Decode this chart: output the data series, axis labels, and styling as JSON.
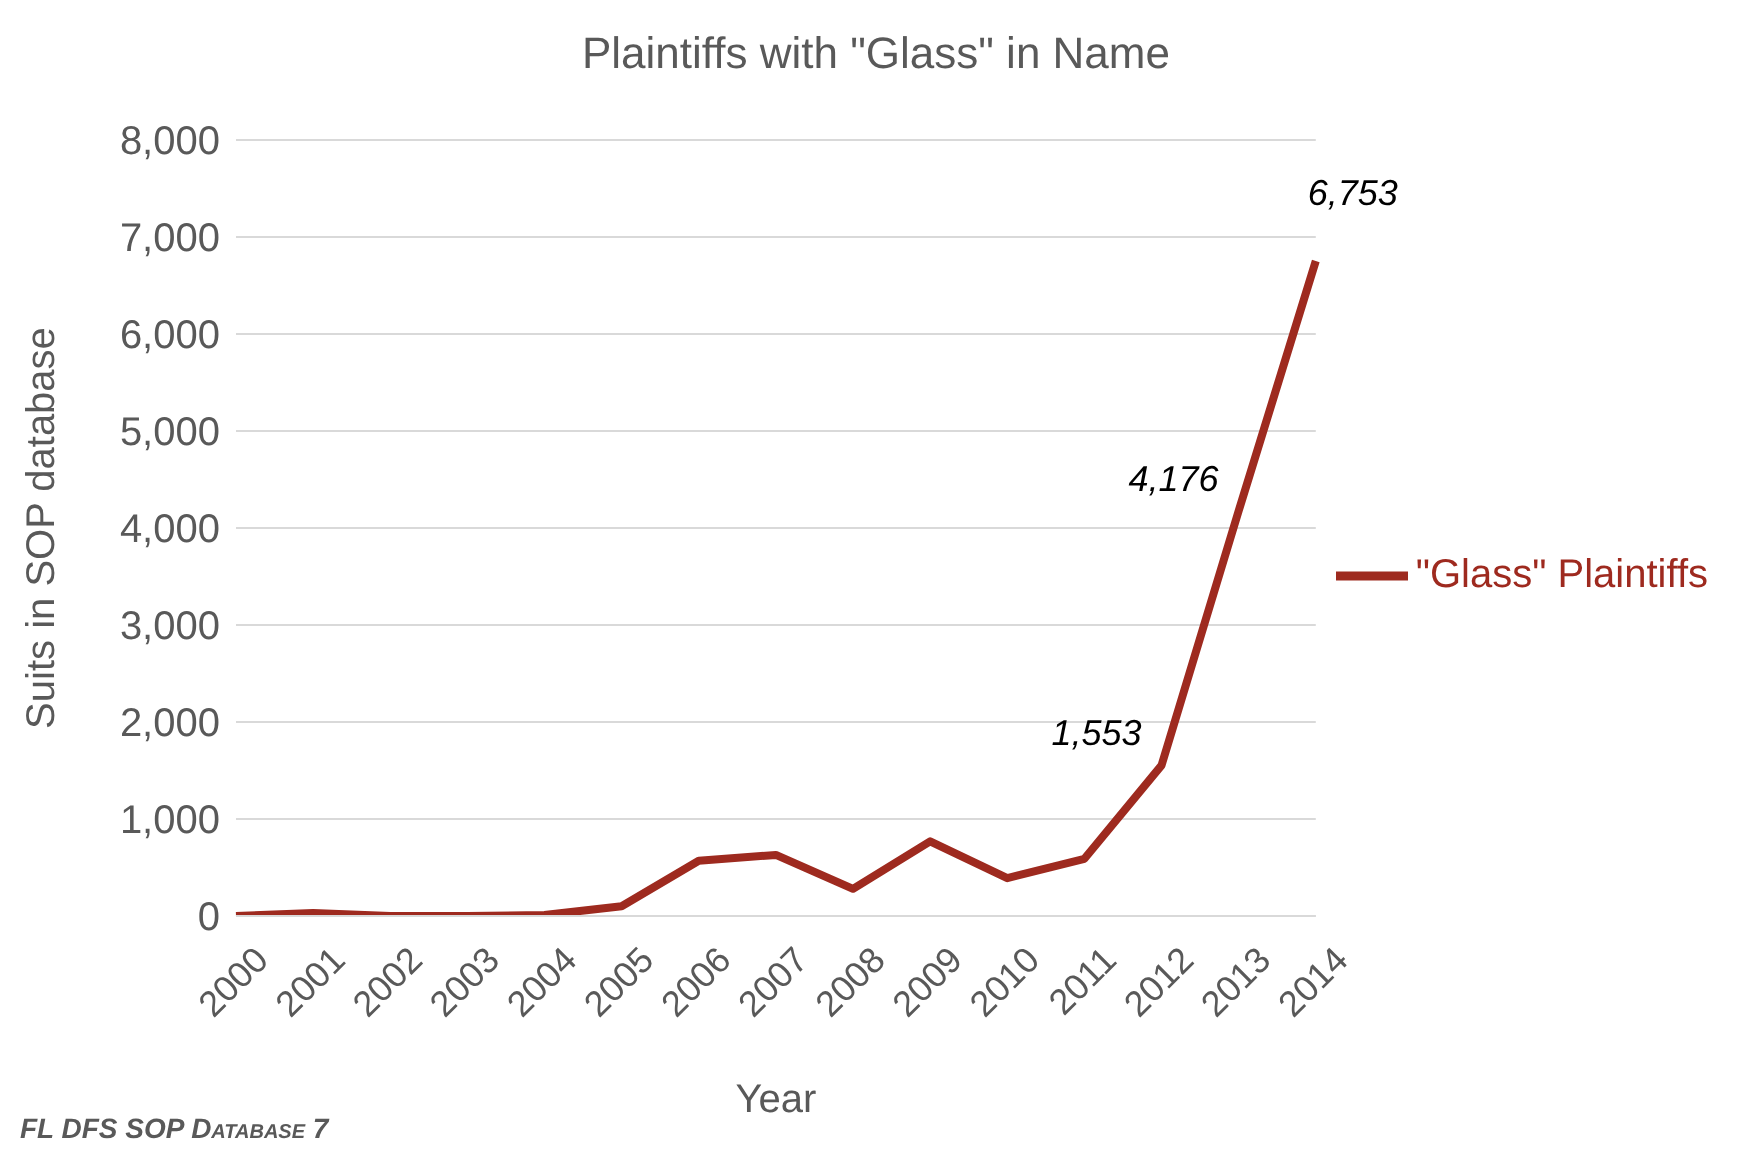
{
  "chart_data": {
    "type": "line",
    "title": "Plaintiffs with \"Glass\" in Name",
    "xlabel": "Year",
    "ylabel": "Suits in SOP database",
    "categories": [
      "2000",
      "2001",
      "2002",
      "2003",
      "2004",
      "2005",
      "2006",
      "2007",
      "2008",
      "2009",
      "2010",
      "2011",
      "2012",
      "2013",
      "2014"
    ],
    "series": [
      {
        "name": "\"Glass\" Plaintiffs",
        "color": "#9e2a1f",
        "values": [
          0,
          30,
          0,
          0,
          10,
          100,
          570,
          630,
          280,
          770,
          390,
          590,
          1553,
          4176,
          6753
        ],
        "value_labels": [
          null,
          null,
          null,
          null,
          null,
          null,
          null,
          null,
          null,
          null,
          null,
          null,
          "1,553",
          "4,176",
          "6,753"
        ]
      }
    ],
    "ylim": [
      0,
      8000
    ],
    "yticks": [
      {
        "value": 0,
        "label": "0"
      },
      {
        "value": 1000,
        "label": "1,000"
      },
      {
        "value": 2000,
        "label": "2,000"
      },
      {
        "value": 3000,
        "label": "3,000"
      },
      {
        "value": 4000,
        "label": "4,000"
      },
      {
        "value": 5000,
        "label": "5,000"
      },
      {
        "value": 6000,
        "label": "6,000"
      },
      {
        "value": 7000,
        "label": "7,000"
      },
      {
        "value": 8000,
        "label": "8,000"
      }
    ],
    "grid": "y",
    "legend": "right",
    "marker": "none",
    "line_style": "solid",
    "annotations": [
      "FL DFS SOP Database 7"
    ]
  }
}
